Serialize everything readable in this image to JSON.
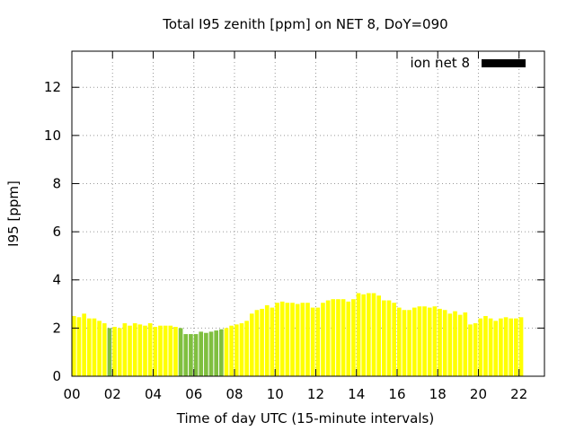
{
  "chart_data": {
    "type": "bar",
    "title": "Total I95 zenith [ppm] on NET 8, DoY=090",
    "xlabel": "Time of day UTC (15-minute intervals)",
    "ylabel": "I95 [ppm]",
    "xlim": [
      0,
      23.25
    ],
    "ylim": [
      0,
      13.5
    ],
    "xticks": [
      "00",
      "02",
      "04",
      "06",
      "08",
      "10",
      "12",
      "14",
      "16",
      "18",
      "20",
      "22"
    ],
    "yticks": [
      "0",
      "2",
      "4",
      "6",
      "8",
      "10",
      "12"
    ],
    "grid": true,
    "legend": {
      "label": "ion net 8",
      "position": "top-right",
      "color": "#000000"
    },
    "colors": {
      "normal": "#ffff00",
      "low": "#7fbf3f"
    },
    "values": [
      2.5,
      2.45,
      2.6,
      2.4,
      2.4,
      2.3,
      2.2,
      2.0,
      2.05,
      2.0,
      2.2,
      2.1,
      2.2,
      2.15,
      2.1,
      2.2,
      2.05,
      2.1,
      2.1,
      2.1,
      2.05,
      2.0,
      1.75,
      1.75,
      1.75,
      1.85,
      1.8,
      1.85,
      1.9,
      1.95,
      2.0,
      2.1,
      2.15,
      2.2,
      2.3,
      2.6,
      2.75,
      2.8,
      2.95,
      2.85,
      3.05,
      3.1,
      3.05,
      3.05,
      3.0,
      3.05,
      3.05,
      2.85,
      2.85,
      3.05,
      3.15,
      3.2,
      3.2,
      3.2,
      3.1,
      3.2,
      3.45,
      3.4,
      3.45,
      3.45,
      3.35,
      3.15,
      3.15,
      3.05,
      2.85,
      2.75,
      2.75,
      2.85,
      2.9,
      2.9,
      2.85,
      2.9,
      2.8,
      2.75,
      2.6,
      2.7,
      2.55,
      2.65,
      2.15,
      2.2,
      2.4,
      2.5,
      2.4,
      2.3,
      2.4,
      2.45,
      2.4,
      2.4,
      2.45
    ],
    "green_indices": [
      7,
      21,
      22,
      23,
      24,
      25,
      26,
      27,
      28,
      29
    ]
  }
}
